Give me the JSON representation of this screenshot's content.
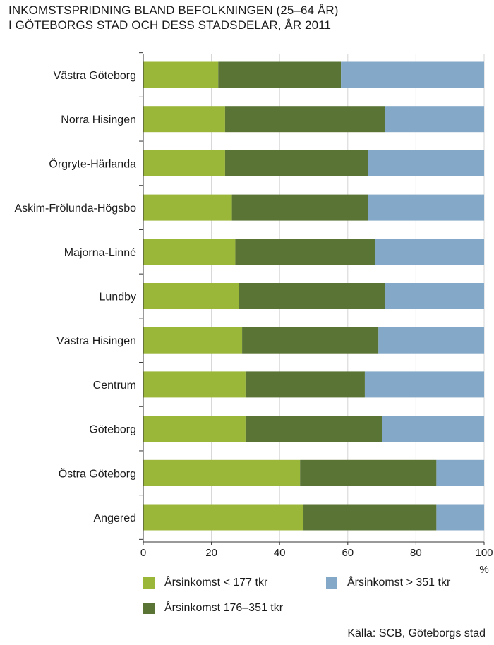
{
  "title_lines": [
    "INKOMSTSPRIDNING BLAND BEFOLKNINGEN (25–64 ÅR)",
    "I GÖTEBORGS STAD OCH DESS STADSDELAR, ÅR 2011"
  ],
  "source": "Källa: SCB, Göteborgs stad",
  "legend": [
    {
      "label": "Årsinkomst < 177 tkr",
      "color": "#9bb73a"
    },
    {
      "label": "Årsinkomst > 351 tkr",
      "color": "#84a8c8"
    },
    {
      "label": "Årsinkomst 176–351 tkr",
      "color": "#5a7435"
    }
  ],
  "chart_data": {
    "type": "bar",
    "orientation": "horizontal",
    "stacked": true,
    "categories": [
      "Västra Göteborg",
      "Norra Hisingen",
      "Örgryte-Härlanda",
      "Askim-Frölunda-Högsbo",
      "Majorna-Linné",
      "Lundby",
      "Västra Hisingen",
      "Centrum",
      "Göteborg",
      "Östra Göteborg",
      "Angered"
    ],
    "series": [
      {
        "name": "Årsinkomst < 177 tkr",
        "color": "#9bb73a",
        "values": [
          22,
          24,
          24,
          26,
          27,
          28,
          29,
          30,
          30,
          46,
          47
        ]
      },
      {
        "name": "Årsinkomst 176–351 tkr",
        "color": "#5a7435",
        "values": [
          36,
          47,
          42,
          40,
          41,
          43,
          40,
          35,
          40,
          40,
          39
        ]
      },
      {
        "name": "Årsinkomst > 351 tkr",
        "color": "#84a8c8",
        "values": [
          42,
          29,
          34,
          34,
          32,
          29,
          31,
          35,
          30,
          14,
          14
        ]
      }
    ],
    "xlim": [
      0,
      100
    ],
    "xticks": [
      0,
      20,
      40,
      60,
      80,
      100
    ],
    "xunit": "%",
    "grid": true,
    "legend_position": "bottom"
  }
}
